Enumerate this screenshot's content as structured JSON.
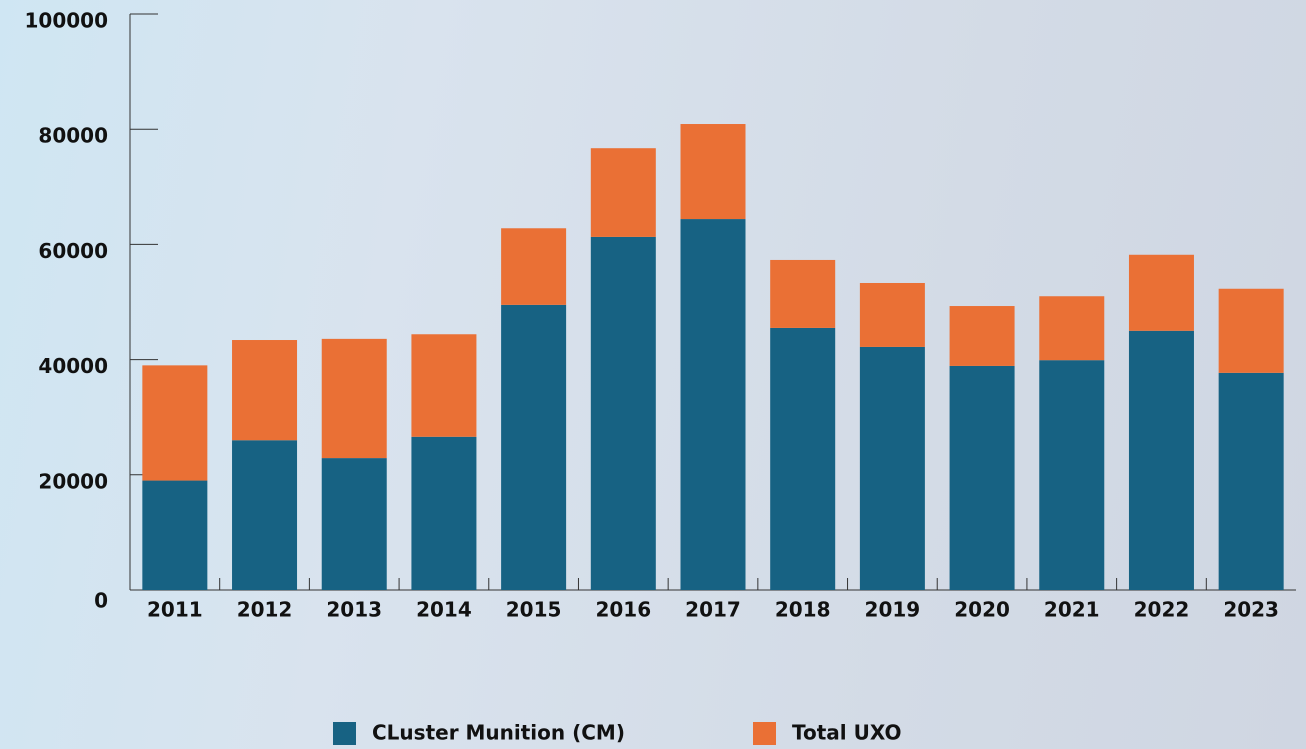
{
  "chart_data": {
    "type": "stacked_bar",
    "categories": [
      "2011",
      "2012",
      "2013",
      "2014",
      "2015",
      "2016",
      "2017",
      "2018",
      "2019",
      "2020",
      "2021",
      "2022",
      "2023"
    ],
    "series": [
      {
        "name": "CLuster Munition (CM)",
        "color": "#176283",
        "values": [
          19000,
          26000,
          22900,
          26600,
          49500,
          61300,
          64400,
          45500,
          42200,
          38900,
          39900,
          45000,
          37700
        ]
      },
      {
        "name": "Total UXO",
        "color": "#ea7035",
        "values": [
          20000,
          17400,
          20700,
          17800,
          13300,
          15400,
          16500,
          11800,
          11100,
          10400,
          11100,
          13200,
          14600
        ]
      }
    ],
    "ylim": [
      0,
      100000
    ],
    "yticks": [
      0,
      20000,
      40000,
      60000,
      80000,
      100000
    ]
  }
}
